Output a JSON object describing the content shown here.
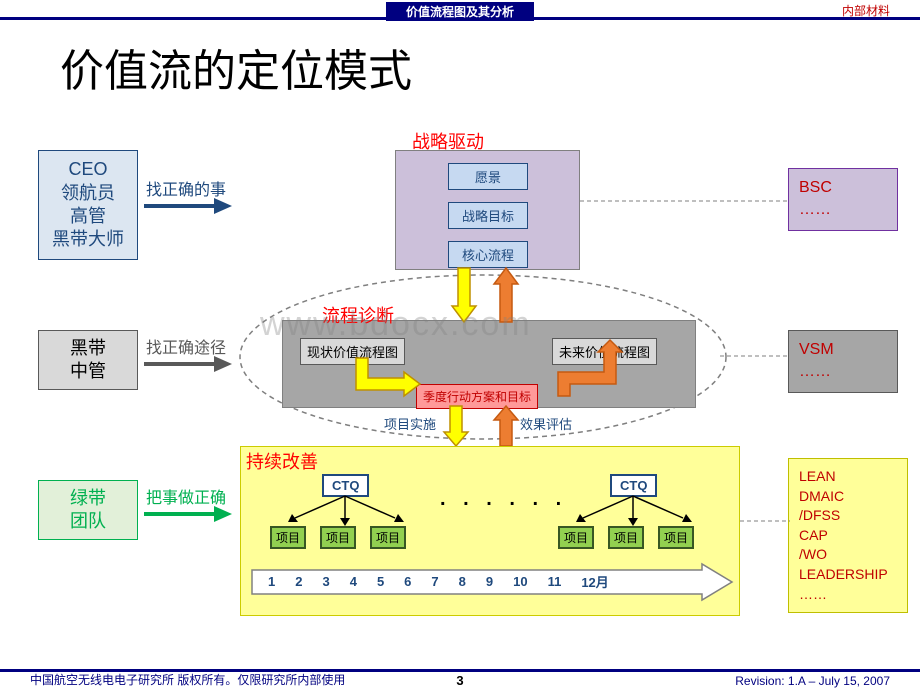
{
  "header": {
    "internal": "内部材料",
    "title_bar": "价值流程图及其分析",
    "main_title": "价值流的定位模式"
  },
  "roles": {
    "top": {
      "lines": [
        "CEO",
        "领航员",
        "高管",
        "黑带大师"
      ],
      "arrow_label": "找正确的事",
      "color": "#1f497d",
      "bg": "#dce6f1",
      "label_color": "#1f497d"
    },
    "mid": {
      "lines": [
        "黑带",
        "中管"
      ],
      "arrow_label": "找正确途径",
      "color": "#595959",
      "bg": "#d9d9d9",
      "label_color": "#595959"
    },
    "bot": {
      "lines": [
        "绿带",
        "团队"
      ],
      "arrow_label": "把事做正确",
      "color": "#00b050",
      "bg": "#e2f0d9",
      "label_color": "#00b050"
    }
  },
  "right": {
    "top": {
      "lines": [
        "BSC",
        "……"
      ],
      "bg": "#ccc0da",
      "border": "#7030a0",
      "color": "#c00000"
    },
    "mid": {
      "lines": [
        "VSM",
        "……"
      ],
      "bg": "#a6a6a6",
      "border": "#595959",
      "color": "#c00000"
    },
    "bot": {
      "lines": [
        "LEAN",
        "DMAIC",
        "/DFSS",
        "CAP",
        "/WO",
        "LEADERSHIP",
        "……"
      ],
      "bg": "#ffff99",
      "border": "#bfbf00",
      "color": "#c00000"
    }
  },
  "sections": {
    "strategy": {
      "title": "战略驱动",
      "boxes": [
        "愿景",
        "战略目标",
        "核心流程"
      ]
    },
    "diag": {
      "title": "流程诊断",
      "current": "现状价值流程图",
      "future": "未来价值流程图",
      "action": "季度行动方案和目标",
      "impl": "项目实施",
      "eval": "效果评估"
    },
    "improve": {
      "title": "持续改善",
      "ctq": "CTQ",
      "proj": "项目",
      "dots": ". . . . . ."
    }
  },
  "timeline": {
    "months": [
      "1",
      "2",
      "3",
      "4",
      "5",
      "6",
      "7",
      "8",
      "9",
      "10",
      "11",
      "12"
    ],
    "suffix": "月"
  },
  "footer": {
    "left": "中国航空无线电电子研究所 版权所有。仅限研究所内部使用",
    "page": "3",
    "right": "Revision: 1.A – July 15, 2007"
  },
  "watermark": "www.bdocx.com",
  "colors": {
    "navy": "#000080",
    "arrow_yellow_fill": "#ffff00",
    "arrow_yellow_stroke": "#bf9000",
    "arrow_orange_fill": "#ed7d31",
    "arrow_orange_stroke": "#c55a11",
    "ellipse_stroke": "#7f7f7f"
  }
}
